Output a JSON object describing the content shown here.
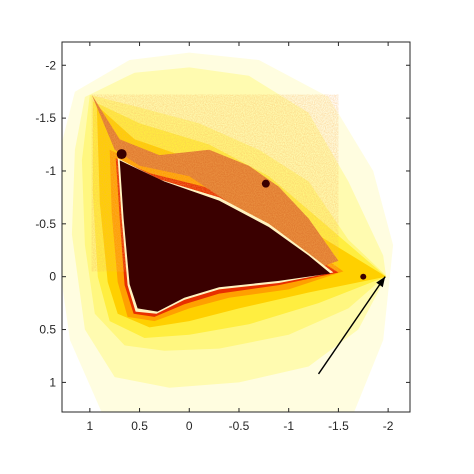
{
  "chart_data": {
    "type": "heatmap",
    "title": "",
    "xlabel": "",
    "ylabel": "",
    "x_axis": {
      "direction": "reversed",
      "lim": [
        1.28,
        -2.22
      ],
      "ticks": [
        1,
        0.5,
        0,
        -0.5,
        -1,
        -1.5,
        -2
      ],
      "tick_labels": [
        "1",
        "0.5",
        "0",
        "-0.5",
        "-1",
        "-1.5",
        "-2"
      ]
    },
    "y_axis": {
      "direction": "reversed",
      "lim": [
        -2.22,
        1.28
      ],
      "ticks": [
        -2,
        -1.5,
        -1,
        -0.5,
        0,
        0.5,
        1
      ],
      "tick_labels": [
        "-2",
        "-1.5",
        "-1",
        "-0.5",
        "0",
        "0.5",
        "1"
      ]
    },
    "grid": false,
    "colormap": [
      "#fffde0",
      "#fffbb0",
      "#fff780",
      "#ffee40",
      "#ffd000",
      "#ffa000",
      "#ff6a00",
      "#e83000",
      "#a00000",
      "#3a0000"
    ],
    "set_color": "#3a0000",
    "background_color": "#ffffff",
    "annotation": {
      "type": "arrow",
      "from": [
        -1.3,
        0.92
      ],
      "to": [
        -1.97,
        0.0
      ],
      "color": "#000000"
    }
  }
}
